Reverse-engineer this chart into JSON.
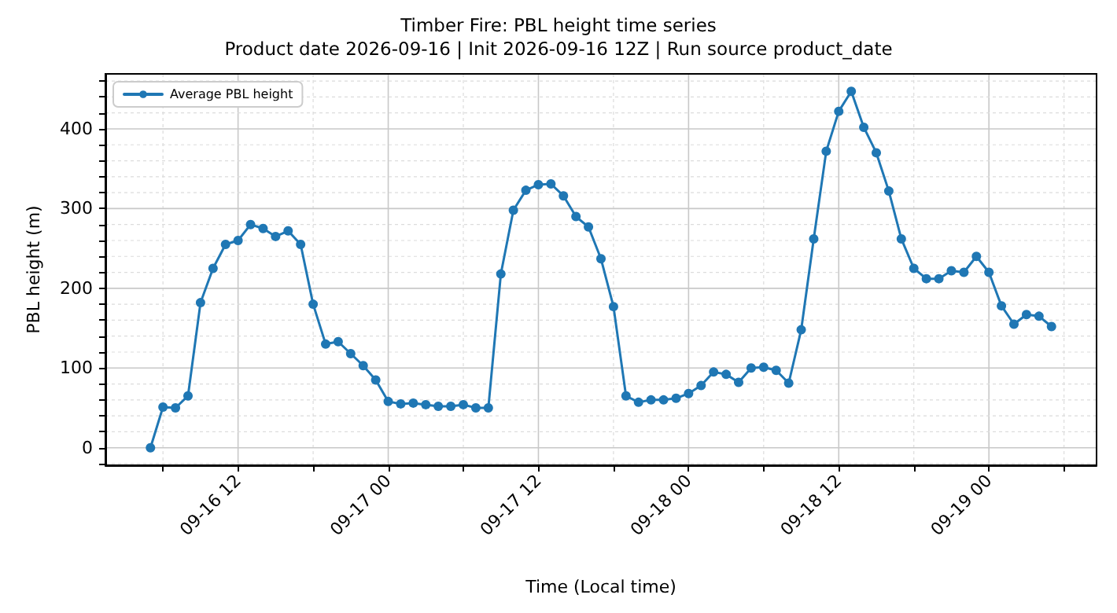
{
  "chart_data": {
    "type": "line",
    "title": "Timber Fire: PBL height time series",
    "subtitle": "Product date 2026-09-16 | Init 2026-09-16 12Z | Run source product_date",
    "xlabel": "Time (Local time)",
    "ylabel": "PBL height (m)",
    "x": [
      "2026-09-16T05:00",
      "2026-09-16T06:00",
      "2026-09-16T07:00",
      "2026-09-16T08:00",
      "2026-09-16T09:00",
      "2026-09-16T10:00",
      "2026-09-16T11:00",
      "2026-09-16T12:00",
      "2026-09-16T13:00",
      "2026-09-16T14:00",
      "2026-09-16T15:00",
      "2026-09-16T16:00",
      "2026-09-16T17:00",
      "2026-09-16T18:00",
      "2026-09-16T19:00",
      "2026-09-16T20:00",
      "2026-09-16T21:00",
      "2026-09-16T22:00",
      "2026-09-16T23:00",
      "2026-09-17T00:00",
      "2026-09-17T01:00",
      "2026-09-17T02:00",
      "2026-09-17T03:00",
      "2026-09-17T04:00",
      "2026-09-17T05:00",
      "2026-09-17T06:00",
      "2026-09-17T07:00",
      "2026-09-17T08:00",
      "2026-09-17T09:00",
      "2026-09-17T10:00",
      "2026-09-17T11:00",
      "2026-09-17T12:00",
      "2026-09-17T13:00",
      "2026-09-17T14:00",
      "2026-09-17T15:00",
      "2026-09-17T16:00",
      "2026-09-17T17:00",
      "2026-09-17T18:00",
      "2026-09-17T19:00",
      "2026-09-17T20:00",
      "2026-09-17T21:00",
      "2026-09-17T22:00",
      "2026-09-17T23:00",
      "2026-09-18T00:00",
      "2026-09-18T01:00",
      "2026-09-18T02:00",
      "2026-09-18T03:00",
      "2026-09-18T04:00",
      "2026-09-18T05:00",
      "2026-09-18T06:00",
      "2026-09-18T07:00",
      "2026-09-18T08:00",
      "2026-09-18T09:00",
      "2026-09-18T10:00",
      "2026-09-18T11:00",
      "2026-09-18T12:00",
      "2026-09-18T13:00",
      "2026-09-18T14:00",
      "2026-09-18T15:00",
      "2026-09-18T16:00",
      "2026-09-18T17:00",
      "2026-09-18T18:00",
      "2026-09-18T19:00",
      "2026-09-18T20:00",
      "2026-09-18T21:00",
      "2026-09-18T22:00",
      "2026-09-18T23:00",
      "2026-09-19T00:00",
      "2026-09-19T01:00",
      "2026-09-19T02:00",
      "2026-09-19T03:00",
      "2026-09-19T04:00",
      "2026-09-19T05:00"
    ],
    "series": [
      {
        "name": "Average PBL height",
        "color": "#1f77b4",
        "values": [
          0,
          51,
          50,
          65,
          182,
          225,
          255,
          260,
          280,
          275,
          265,
          272,
          255,
          180,
          130,
          133,
          118,
          103,
          85,
          58,
          55,
          56,
          54,
          52,
          52,
          54,
          50,
          50,
          218,
          298,
          323,
          330,
          331,
          316,
          290,
          277,
          237,
          177,
          65,
          57,
          60,
          60,
          62,
          68,
          78,
          95,
          92,
          82,
          100,
          101,
          97,
          81,
          148,
          262,
          372,
          422,
          447,
          402,
          370,
          322,
          262,
          225,
          212,
          212,
          222,
          220,
          240,
          220,
          178,
          155,
          167,
          165,
          152
        ]
      }
    ],
    "xlim": [
      "2026-09-16T01:24",
      "2026-09-19T08:36"
    ],
    "xticks": [
      {
        "value": "2026-09-16T06:00",
        "label": null
      },
      {
        "value": "2026-09-16T12:00",
        "label": "09-16 12"
      },
      {
        "value": "2026-09-16T18:00",
        "label": null
      },
      {
        "value": "2026-09-17T00:00",
        "label": "09-17 00"
      },
      {
        "value": "2026-09-17T06:00",
        "label": null
      },
      {
        "value": "2026-09-17T12:00",
        "label": "09-17 12"
      },
      {
        "value": "2026-09-17T18:00",
        "label": null
      },
      {
        "value": "2026-09-18T00:00",
        "label": "09-18 00"
      },
      {
        "value": "2026-09-18T06:00",
        "label": null
      },
      {
        "value": "2026-09-18T12:00",
        "label": "09-18 12"
      },
      {
        "value": "2026-09-18T18:00",
        "label": null
      },
      {
        "value": "2026-09-19T00:00",
        "label": "09-19 00"
      },
      {
        "value": "2026-09-19T06:00",
        "label": null
      }
    ],
    "ylim": [
      -22,
      469
    ],
    "yticks": [
      {
        "value": -20,
        "label": null
      },
      0,
      {
        "value": 20,
        "label": null
      },
      {
        "value": 40,
        "label": null
      },
      {
        "value": 60,
        "label": null
      },
      {
        "value": 80,
        "label": null
      },
      100,
      {
        "value": 120,
        "label": null
      },
      {
        "value": 140,
        "label": null
      },
      {
        "value": 160,
        "label": null
      },
      {
        "value": 180,
        "label": null
      },
      200,
      {
        "value": 220,
        "label": null
      },
      {
        "value": 240,
        "label": null
      },
      {
        "value": 260,
        "label": null
      },
      {
        "value": 280,
        "label": null
      },
      300,
      {
        "value": 320,
        "label": null
      },
      {
        "value": 340,
        "label": null
      },
      {
        "value": 360,
        "label": null
      },
      {
        "value": 380,
        "label": null
      },
      400,
      {
        "value": 420,
        "label": null
      },
      {
        "value": 440,
        "label": null
      },
      {
        "value": 460,
        "label": null
      }
    ],
    "grid": true,
    "legend": "top left",
    "marker": "circle",
    "line_style": "solid"
  }
}
